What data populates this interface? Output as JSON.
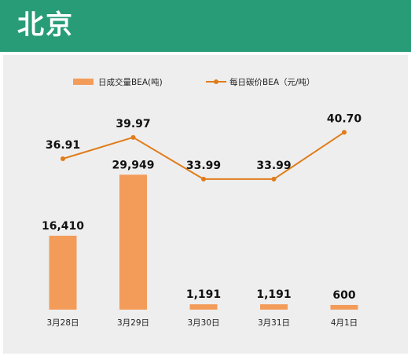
{
  "header": {
    "title": "北京"
  },
  "colors": {
    "header_bg": "#289c77",
    "bar": "#f39c5a",
    "line": "#e07c1a",
    "panel_bg": "#eeeeee"
  },
  "chart_data": {
    "type": "bar",
    "title": "北京",
    "categories": [
      "3月28日",
      "3月29日",
      "3月30日",
      "3月31日",
      "4月1日"
    ],
    "series": [
      {
        "name": "日成交量BEA(吨)",
        "type": "bar",
        "values": [
          16410,
          29949,
          1191,
          1191,
          600
        ],
        "labels": [
          "16,410",
          "29,949",
          "1,191",
          "1,191",
          "600"
        ]
      },
      {
        "name": "每日碳价BEA（元/吨）",
        "type": "line",
        "values": [
          36.91,
          39.97,
          33.99,
          33.99,
          40.7
        ],
        "labels": [
          "36.91",
          "39.97",
          "33.99",
          "33.99",
          "40.70"
        ]
      }
    ],
    "legend_position": "top-center",
    "grid": false
  }
}
